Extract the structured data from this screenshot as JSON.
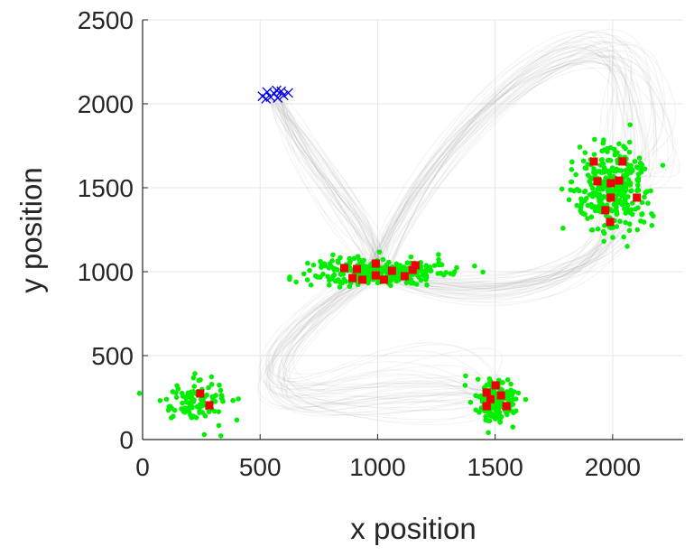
{
  "chart_data": {
    "type": "scatter",
    "title": "",
    "xlabel": "x position",
    "ylabel": "y position",
    "xlim": [
      0,
      2300
    ],
    "ylim": [
      0,
      2500
    ],
    "xticks": [
      0,
      500,
      1000,
      1500,
      2000
    ],
    "yticks": [
      0,
      500,
      1000,
      1500,
      2000,
      2500
    ],
    "grid": true,
    "colors": {
      "green": "#00ee00",
      "red": "#ee0000",
      "blue": "#0000ee",
      "trajectory": "#999999",
      "axis": "#262626",
      "grid": "#e6e6e6"
    },
    "green_clusters": [
      {
        "center": [
          230,
          230
        ],
        "spread": [
          70,
          65
        ],
        "count": 110
      },
      {
        "center": [
          1000,
          1000
        ],
        "spread": [
          140,
          40
        ],
        "count": 320
      },
      {
        "center": [
          1500,
          230
        ],
        "spread": [
          45,
          65
        ],
        "count": 170
      },
      {
        "center": [
          2000,
          1500
        ],
        "spread": [
          80,
          120
        ],
        "count": 330
      }
    ],
    "red_squares": [
      [
        245,
        274
      ],
      [
        284,
        204
      ],
      [
        858,
        1022
      ],
      [
        912,
        1016
      ],
      [
        893,
        962
      ],
      [
        935,
        952
      ],
      [
        992,
        1048
      ],
      [
        992,
        978
      ],
      [
        1027,
        952
      ],
      [
        1061,
        1005
      ],
      [
        1115,
        973
      ],
      [
        1149,
        1011
      ],
      [
        1161,
        1038
      ],
      [
        1464,
        280
      ],
      [
        1502,
        323
      ],
      [
        1525,
        263
      ],
      [
        1464,
        199
      ],
      [
        1548,
        199
      ],
      [
        1480,
        240
      ],
      [
        1920,
        1656
      ],
      [
        2042,
        1656
      ],
      [
        1935,
        1538
      ],
      [
        1992,
        1527
      ],
      [
        2027,
        1543
      ],
      [
        1992,
        1441
      ],
      [
        2103,
        1441
      ],
      [
        1969,
        1366
      ],
      [
        1989,
        1296
      ]
    ],
    "blue_crosses": [
      [
        510,
        2045
      ],
      [
        530,
        2070
      ],
      [
        545,
        2040
      ],
      [
        560,
        2060
      ],
      [
        575,
        2035
      ],
      [
        590,
        2075
      ],
      [
        600,
        2050
      ],
      [
        620,
        2065
      ],
      [
        525,
        2030
      ],
      [
        570,
        2080
      ]
    ]
  }
}
